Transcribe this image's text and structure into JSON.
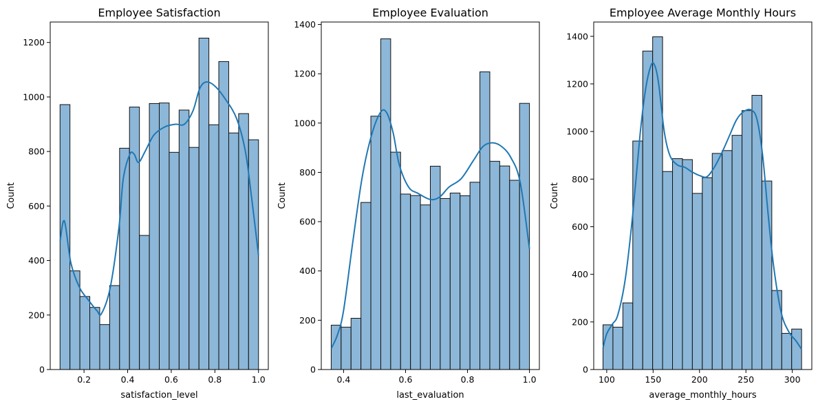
{
  "chart_data": [
    {
      "type": "bar",
      "subtype": "histogram",
      "title": "Employee Satisfaction",
      "xlabel": "satisfaction_level",
      "ylabel": "Count",
      "xlim": [
        0.045,
        1.045
      ],
      "ylim": [
        0,
        1275
      ],
      "xticks": [
        0.2,
        0.4,
        0.6,
        0.8,
        1.0
      ],
      "xtick_labels": [
        "0.2",
        "0.4",
        "0.6",
        "0.8",
        "1.0"
      ],
      "yticks": [
        0,
        200,
        400,
        600,
        800,
        1000,
        1200
      ],
      "bin_start": 0.09,
      "bin_width": 0.0455,
      "values": [
        972,
        362,
        268,
        228,
        165,
        308,
        812,
        963,
        492,
        976,
        978,
        797,
        952,
        815,
        1216,
        898,
        1130,
        868,
        939,
        843
      ],
      "kde": [
        [
          0.09,
          470
        ],
        [
          0.11,
          545
        ],
        [
          0.14,
          390
        ],
        [
          0.18,
          300
        ],
        [
          0.22,
          255
        ],
        [
          0.26,
          215
        ],
        [
          0.28,
          205
        ],
        [
          0.32,
          300
        ],
        [
          0.36,
          520
        ],
        [
          0.38,
          700
        ],
        [
          0.41,
          790
        ],
        [
          0.43,
          790
        ],
        [
          0.45,
          760
        ],
        [
          0.48,
          800
        ],
        [
          0.52,
          860
        ],
        [
          0.57,
          890
        ],
        [
          0.62,
          900
        ],
        [
          0.66,
          900
        ],
        [
          0.7,
          950
        ],
        [
          0.73,
          1030
        ],
        [
          0.76,
          1055
        ],
        [
          0.8,
          1040
        ],
        [
          0.85,
          990
        ],
        [
          0.9,
          920
        ],
        [
          0.94,
          800
        ],
        [
          0.97,
          620
        ],
        [
          1.0,
          420
        ]
      ]
    },
    {
      "type": "bar",
      "subtype": "histogram",
      "title": "Employee Evaluation",
      "xlabel": "last_evaluation",
      "ylabel": "Count",
      "xlim": [
        0.328,
        1.032
      ],
      "ylim": [
        0,
        1410
      ],
      "xticks": [
        0.4,
        0.6,
        0.8,
        1.0
      ],
      "xtick_labels": [
        "0.4",
        "0.6",
        "0.8",
        "1.0"
      ],
      "yticks": [
        0,
        200,
        400,
        600,
        800,
        1000,
        1200,
        1400
      ],
      "bin_start": 0.36,
      "bin_width": 0.032,
      "values": [
        180,
        172,
        208,
        678,
        1028,
        1342,
        882,
        712,
        706,
        668,
        825,
        694,
        716,
        705,
        760,
        1208,
        845,
        826,
        768,
        1080
      ],
      "kde": [
        [
          0.36,
          85
        ],
        [
          0.38,
          140
        ],
        [
          0.4,
          240
        ],
        [
          0.43,
          520
        ],
        [
          0.46,
          780
        ],
        [
          0.49,
          950
        ],
        [
          0.52,
          1045
        ],
        [
          0.54,
          1040
        ],
        [
          0.56,
          960
        ],
        [
          0.58,
          830
        ],
        [
          0.61,
          740
        ],
        [
          0.64,
          715
        ],
        [
          0.68,
          690
        ],
        [
          0.71,
          700
        ],
        [
          0.74,
          740
        ],
        [
          0.78,
          775
        ],
        [
          0.82,
          850
        ],
        [
          0.85,
          905
        ],
        [
          0.88,
          920
        ],
        [
          0.91,
          905
        ],
        [
          0.94,
          860
        ],
        [
          0.97,
          760
        ],
        [
          1.0,
          490
        ]
      ]
    },
    {
      "type": "bar",
      "subtype": "histogram",
      "title": "Employee Average Monthly Hours",
      "xlabel": "average_monthly_hours",
      "ylabel": "Count",
      "xlim": [
        86.0,
        321.0
      ],
      "ylim": [
        0,
        1460
      ],
      "xticks": [
        100,
        150,
        200,
        250,
        300
      ],
      "xtick_labels": [
        "100",
        "150",
        "200",
        "250",
        "300"
      ],
      "yticks": [
        0,
        200,
        400,
        600,
        800,
        1000,
        1200,
        1400
      ],
      "bin_start": 96.0,
      "bin_width": 10.7,
      "values": [
        188,
        178,
        280,
        960,
        1338,
        1398,
        832,
        886,
        882,
        740,
        806,
        908,
        920,
        984,
        1088,
        1152,
        792,
        332,
        152,
        170
      ],
      "kde": [
        [
          96,
          90
        ],
        [
          100,
          150
        ],
        [
          106,
          190
        ],
        [
          112,
          230
        ],
        [
          120,
          380
        ],
        [
          128,
          650
        ],
        [
          136,
          990
        ],
        [
          142,
          1180
        ],
        [
          148,
          1280
        ],
        [
          152,
          1275
        ],
        [
          156,
          1200
        ],
        [
          162,
          1000
        ],
        [
          168,
          900
        ],
        [
          176,
          860
        ],
        [
          184,
          850
        ],
        [
          192,
          830
        ],
        [
          200,
          815
        ],
        [
          208,
          810
        ],
        [
          216,
          850
        ],
        [
          224,
          910
        ],
        [
          232,
          980
        ],
        [
          240,
          1050
        ],
        [
          248,
          1085
        ],
        [
          256,
          1090
        ],
        [
          262,
          1050
        ],
        [
          268,
          900
        ],
        [
          274,
          650
        ],
        [
          280,
          430
        ],
        [
          288,
          240
        ],
        [
          296,
          160
        ],
        [
          304,
          120
        ],
        [
          310,
          85
        ]
      ]
    }
  ]
}
